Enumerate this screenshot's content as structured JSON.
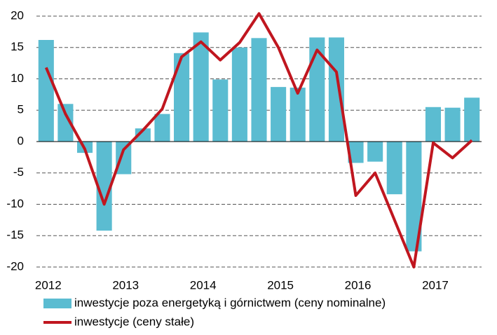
{
  "chart_data": {
    "type": "bar-line",
    "categories": [
      "2012",
      null,
      null,
      null,
      "2013",
      null,
      null,
      null,
      "2014",
      null,
      null,
      null,
      "2015",
      null,
      null,
      null,
      "2016",
      null,
      null,
      null,
      "2017",
      null,
      null
    ],
    "series": [
      {
        "name": "inwestycje poza energetyką i górnictwem (ceny nominalne)",
        "type": "bar",
        "color": "#5bbcd1",
        "values": [
          16.2,
          6.0,
          -1.8,
          -14.2,
          -5.2,
          2.1,
          4.4,
          14.1,
          17.4,
          9.9,
          15.0,
          16.5,
          8.7,
          8.6,
          16.6,
          16.6,
          -3.4,
          -3.2,
          -8.4,
          -17.5,
          5.5,
          5.4,
          7.0
        ]
      },
      {
        "name": "inwestycje (ceny stałe)",
        "type": "line",
        "color": "#c0161f",
        "values": [
          11.8,
          4.4,
          -1.2,
          -10.0,
          -1.3,
          1.8,
          5.2,
          13.5,
          15.9,
          13.0,
          15.8,
          20.4,
          15.0,
          7.7,
          14.6,
          11.1,
          -8.6,
          -5.0,
          -12.5,
          -20.0,
          -0.2,
          -2.6,
          0.2
        ]
      }
    ],
    "ylim": [
      -20,
      20
    ],
    "yticks": [
      -20,
      -15,
      -10,
      -5,
      0,
      5,
      10,
      15,
      20
    ],
    "grid": true
  }
}
